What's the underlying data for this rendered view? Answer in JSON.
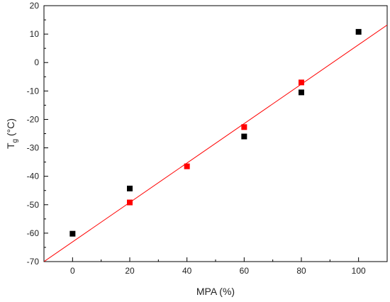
{
  "chart_data": {
    "type": "scatter",
    "xlabel": "MPA (%)",
    "ylabel_main": "T",
    "ylabel_sub": "g",
    "ylabel_unit": " (°C)",
    "xlim": [
      -10,
      110
    ],
    "ylim": [
      -70,
      20
    ],
    "x_ticks": [
      0,
      20,
      40,
      60,
      80,
      100
    ],
    "y_ticks": [
      20,
      10,
      0,
      -10,
      -20,
      -30,
      -40,
      -50,
      -60,
      -70
    ],
    "grid": false,
    "series": [
      {
        "color": "#000000",
        "marker": "square",
        "x": [
          0,
          20,
          60,
          80,
          100
        ],
        "y": [
          -60.2,
          -44.3,
          -26.0,
          -10.5,
          10.8
        ]
      },
      {
        "color": "#ff0000",
        "marker": "square",
        "x": [
          20,
          40,
          60,
          80
        ],
        "y": [
          -49.2,
          -36.5,
          -22.7,
          -7.0
        ]
      }
    ],
    "fit_line": {
      "color": "#ff0000",
      "x": [
        -10,
        110
      ],
      "y": [
        -70.0,
        13.2
      ]
    }
  }
}
